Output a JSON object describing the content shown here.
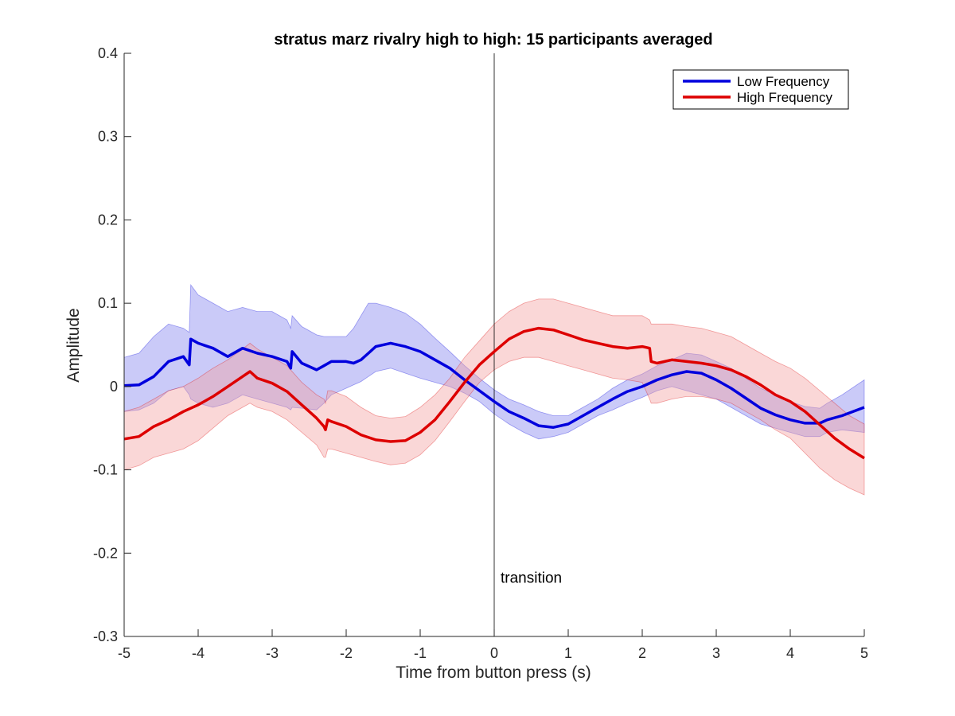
{
  "chart_data": {
    "type": "line",
    "title": "stratus marz rivalry high to high: 15 participants averaged",
    "xlabel": "Time from button press (s)",
    "ylabel": "Amplitude",
    "xlim": [
      -5,
      5
    ],
    "ylim": [
      -0.3,
      0.4
    ],
    "xticks": [
      -5,
      -4,
      -3,
      -2,
      -1,
      0,
      1,
      2,
      3,
      4,
      5
    ],
    "xtick_labels": [
      "-5",
      "-4",
      "-3",
      "-2",
      "-1",
      "0",
      "1",
      "2",
      "3",
      "4",
      "5"
    ],
    "yticks": [
      -0.3,
      -0.2,
      -0.1,
      0,
      0.1,
      0.2,
      0.3,
      0.4
    ],
    "ytick_labels": [
      "-0.3",
      "-0.2",
      "-0.1",
      "0",
      "0.1",
      "0.2",
      "0.3",
      "0.4"
    ],
    "grid": false,
    "legend_position": "top-right",
    "vertical_line": {
      "x": 0,
      "label": "transition",
      "label_y": -0.23
    },
    "series": [
      {
        "name": "Low Frequency",
        "color": "#0000dd",
        "band_color": "#8080ee",
        "x": [
          -5,
          -4.8,
          -4.6,
          -4.4,
          -4.2,
          -4.12,
          -4.1,
          -4.0,
          -3.8,
          -3.6,
          -3.4,
          -3.2,
          -3.0,
          -2.8,
          -2.75,
          -2.73,
          -2.6,
          -2.4,
          -2.3,
          -2.2,
          -2.0,
          -1.9,
          -1.8,
          -1.7,
          -1.6,
          -1.4,
          -1.2,
          -1.0,
          -0.8,
          -0.6,
          -0.4,
          -0.2,
          0,
          0.2,
          0.4,
          0.6,
          0.8,
          1.0,
          1.2,
          1.4,
          1.6,
          1.8,
          2.0,
          2.2,
          2.4,
          2.6,
          2.8,
          3.0,
          3.2,
          3.4,
          3.6,
          3.8,
          4.0,
          4.2,
          4.4,
          4.5,
          4.7,
          5.0
        ],
        "y": [
          0.001,
          0.002,
          0.012,
          0.03,
          0.036,
          0.026,
          0.057,
          0.052,
          0.046,
          0.036,
          0.046,
          0.04,
          0.036,
          0.03,
          0.022,
          0.042,
          0.028,
          0.02,
          0.025,
          0.03,
          0.03,
          0.028,
          0.032,
          0.04,
          0.048,
          0.052,
          0.048,
          0.042,
          0.032,
          0.022,
          0.008,
          -0.005,
          -0.018,
          -0.03,
          -0.038,
          -0.047,
          -0.049,
          -0.045,
          -0.035,
          -0.025,
          -0.015,
          -0.006,
          0.0,
          0.008,
          0.014,
          0.018,
          0.016,
          0.008,
          -0.002,
          -0.014,
          -0.026,
          -0.034,
          -0.04,
          -0.044,
          -0.044,
          -0.04,
          -0.035,
          -0.025
        ],
        "lower": [
          -0.03,
          -0.028,
          -0.02,
          -0.005,
          0.0,
          -0.01,
          -0.015,
          -0.02,
          -0.025,
          -0.02,
          -0.01,
          -0.015,
          -0.02,
          -0.025,
          -0.028,
          -0.025,
          -0.026,
          -0.028,
          -0.02,
          -0.01,
          -0.002,
          0.002,
          0.006,
          0.012,
          0.018,
          0.022,
          0.016,
          0.01,
          0.005,
          0.0,
          -0.008,
          -0.018,
          -0.033,
          -0.045,
          -0.055,
          -0.063,
          -0.06,
          -0.055,
          -0.045,
          -0.035,
          -0.028,
          -0.02,
          -0.013,
          -0.005,
          0.0,
          -0.005,
          -0.01,
          -0.015,
          -0.025,
          -0.035,
          -0.045,
          -0.05,
          -0.055,
          -0.06,
          -0.06,
          -0.055,
          -0.052,
          -0.055
        ],
        "upper": [
          0.035,
          0.04,
          0.06,
          0.075,
          0.07,
          0.065,
          0.122,
          0.11,
          0.1,
          0.09,
          0.095,
          0.09,
          0.09,
          0.08,
          0.07,
          0.085,
          0.072,
          0.062,
          0.06,
          0.06,
          0.06,
          0.07,
          0.085,
          0.1,
          0.1,
          0.095,
          0.088,
          0.075,
          0.058,
          0.042,
          0.025,
          0.01,
          -0.004,
          -0.015,
          -0.022,
          -0.03,
          -0.035,
          -0.035,
          -0.025,
          -0.015,
          -0.002,
          0.008,
          0.015,
          0.025,
          0.032,
          0.04,
          0.038,
          0.03,
          0.022,
          0.01,
          -0.002,
          -0.01,
          -0.018,
          -0.024,
          -0.026,
          -0.02,
          -0.01,
          0.008
        ]
      },
      {
        "name": "High Frequency",
        "color": "#dd0000",
        "band_color": "#f4a0a0",
        "x": [
          -5,
          -4.8,
          -4.6,
          -4.4,
          -4.2,
          -4.0,
          -3.8,
          -3.6,
          -3.4,
          -3.3,
          -3.2,
          -3.0,
          -2.8,
          -2.6,
          -2.4,
          -2.3,
          -2.28,
          -2.25,
          -2.2,
          -2.0,
          -1.8,
          -1.6,
          -1.4,
          -1.2,
          -1.0,
          -0.8,
          -0.6,
          -0.4,
          -0.2,
          0,
          0.2,
          0.4,
          0.6,
          0.8,
          1.0,
          1.2,
          1.4,
          1.6,
          1.8,
          2.0,
          2.1,
          2.12,
          2.2,
          2.4,
          2.6,
          2.8,
          3.0,
          3.2,
          3.4,
          3.6,
          3.8,
          4.0,
          4.2,
          4.4,
          4.6,
          4.8,
          5.0
        ],
        "y": [
          -0.063,
          -0.06,
          -0.048,
          -0.04,
          -0.03,
          -0.022,
          -0.012,
          0.0,
          0.012,
          0.018,
          0.01,
          0.004,
          -0.006,
          -0.022,
          -0.038,
          -0.048,
          -0.052,
          -0.04,
          -0.042,
          -0.048,
          -0.058,
          -0.064,
          -0.066,
          -0.065,
          -0.055,
          -0.04,
          -0.018,
          0.005,
          0.026,
          0.042,
          0.057,
          0.066,
          0.07,
          0.068,
          0.062,
          0.056,
          0.052,
          0.048,
          0.046,
          0.048,
          0.046,
          0.03,
          0.028,
          0.032,
          0.03,
          0.028,
          0.025,
          0.02,
          0.012,
          0.002,
          -0.01,
          -0.018,
          -0.03,
          -0.046,
          -0.062,
          -0.075,
          -0.086
        ],
        "lower": [
          -0.1,
          -0.095,
          -0.085,
          -0.08,
          -0.075,
          -0.065,
          -0.05,
          -0.035,
          -0.025,
          -0.02,
          -0.025,
          -0.03,
          -0.04,
          -0.055,
          -0.07,
          -0.085,
          -0.085,
          -0.075,
          -0.075,
          -0.08,
          -0.085,
          -0.09,
          -0.094,
          -0.092,
          -0.082,
          -0.065,
          -0.042,
          -0.018,
          0.005,
          0.02,
          0.03,
          0.035,
          0.035,
          0.03,
          0.025,
          0.02,
          0.015,
          0.01,
          0.008,
          0.005,
          -0.015,
          -0.02,
          -0.02,
          -0.015,
          -0.012,
          -0.012,
          -0.015,
          -0.02,
          -0.03,
          -0.04,
          -0.052,
          -0.062,
          -0.08,
          -0.098,
          -0.112,
          -0.122,
          -0.13
        ],
        "upper": [
          -0.03,
          -0.025,
          -0.015,
          -0.005,
          0.0,
          0.01,
          0.022,
          0.032,
          0.045,
          0.052,
          0.045,
          0.035,
          0.025,
          0.005,
          -0.01,
          -0.015,
          -0.02,
          -0.005,
          -0.005,
          -0.012,
          -0.025,
          -0.035,
          -0.038,
          -0.036,
          -0.025,
          -0.01,
          0.01,
          0.035,
          0.055,
          0.075,
          0.09,
          0.1,
          0.105,
          0.105,
          0.1,
          0.095,
          0.09,
          0.085,
          0.085,
          0.085,
          0.08,
          0.075,
          0.075,
          0.075,
          0.072,
          0.07,
          0.065,
          0.06,
          0.05,
          0.04,
          0.03,
          0.022,
          0.01,
          -0.005,
          -0.02,
          -0.035,
          -0.045
        ]
      }
    ]
  }
}
